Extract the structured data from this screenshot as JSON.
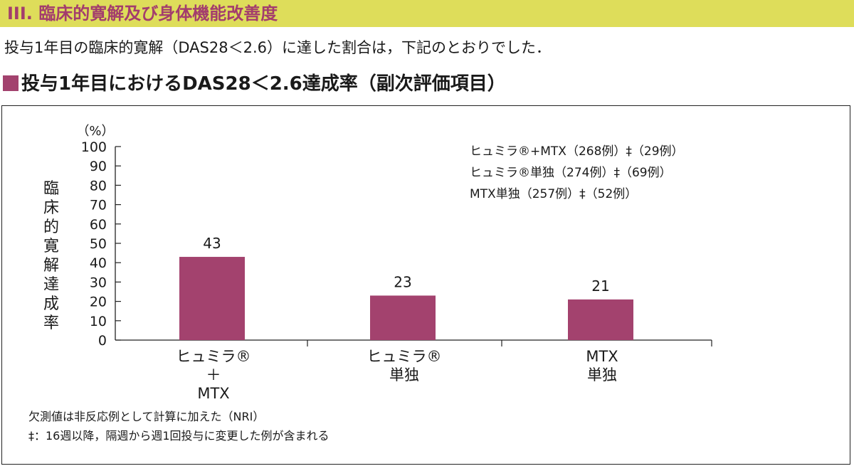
{
  "header": {
    "title": "III. 臨床的寛解及び身体機能改善度"
  },
  "intro_text": "投与1年目の臨床的寛解（DAS28＜2.6）に達した割合は，下記のとおりでした．",
  "chart_heading": "投与1年目におけるDAS28＜2.6達成率（副次評価項目）",
  "colors": {
    "header_band": "#dedd5a",
    "header_text": "#a33d6d",
    "bar": "#a3426e"
  },
  "chart_data": {
    "type": "bar",
    "ylabel": "臨床的寛解達成率",
    "yunit": "（%）",
    "ylim": [
      0,
      100
    ],
    "yticks": [
      "0",
      "10",
      "20",
      "30",
      "40",
      "50",
      "60",
      "70",
      "80",
      "90",
      "100"
    ],
    "categories": [
      [
        "ヒュミラ®",
        "＋",
        "MTX"
      ],
      [
        "ヒュミラ®",
        "単独"
      ],
      [
        "MTX",
        "単独"
      ]
    ],
    "values": [
      43,
      23,
      21
    ],
    "data_labels": [
      "43",
      "23",
      "21"
    ],
    "legend": [
      "ヒュミラ®+MTX（268例）‡（29例）",
      "ヒュミラ®単独（274例）‡（69例）",
      "MTX単独（257例）‡（52例）"
    ],
    "legend_position": "top-right",
    "grid": false
  },
  "footnotes": [
    "欠測値は非反応例として計算に加えた（NRI）",
    "‡：16週以降，隔週から週1回投与に変更した例が含まれる"
  ]
}
